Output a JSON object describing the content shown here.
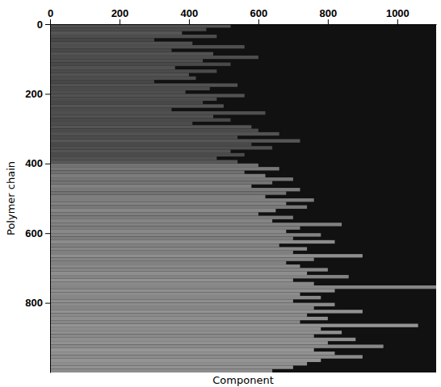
{
  "chart_data": {
    "type": "heatmap",
    "x_label": "Component",
    "y_label": "Polymer chain",
    "xlim": [
      0,
      1112
    ],
    "ylim": [
      0,
      1000
    ],
    "xticks": [
      0,
      200,
      400,
      600,
      800,
      1000
    ],
    "yticks": [
      0,
      200,
      400,
      600,
      800
    ],
    "y_bins": [
      0,
      10,
      20,
      30,
      40,
      50,
      60,
      70,
      80,
      90,
      100,
      110,
      120,
      130,
      140,
      150,
      160,
      170,
      180,
      190,
      200,
      210,
      220,
      230,
      240,
      250,
      260,
      270,
      280,
      290,
      300,
      310,
      320,
      330,
      340,
      350,
      360,
      370,
      380,
      390,
      400,
      410,
      420,
      430,
      440,
      450,
      460,
      470,
      480,
      490,
      500,
      510,
      520,
      530,
      540,
      550,
      560,
      570,
      580,
      590,
      600,
      610,
      620,
      630,
      640,
      650,
      660,
      670,
      680,
      690,
      700,
      710,
      720,
      730,
      740,
      750,
      760,
      770,
      780,
      790,
      800,
      810,
      820,
      830,
      840,
      850,
      860,
      870,
      880,
      890,
      900,
      910,
      920,
      930,
      940,
      950,
      960,
      970,
      980,
      990,
      1000
    ],
    "lengths": [
      520,
      450,
      380,
      480,
      300,
      410,
      560,
      350,
      470,
      600,
      440,
      520,
      360,
      480,
      400,
      420,
      300,
      540,
      460,
      390,
      560,
      480,
      440,
      500,
      350,
      620,
      470,
      520,
      410,
      580,
      600,
      660,
      540,
      720,
      580,
      640,
      520,
      560,
      480,
      540,
      600,
      660,
      560,
      620,
      700,
      640,
      580,
      720,
      680,
      620,
      760,
      680,
      740,
      650,
      600,
      700,
      640,
      840,
      720,
      680,
      780,
      700,
      820,
      660,
      740,
      700,
      900,
      760,
      680,
      720,
      800,
      740,
      860,
      700,
      760,
      1120,
      820,
      720,
      780,
      700,
      820,
      760,
      900,
      740,
      800,
      720,
      1060,
      780,
      840,
      760,
      880,
      800,
      960,
      760,
      820,
      900,
      780,
      740,
      700,
      640
    ],
    "intensity": [
      0.3,
      0.27,
      0.32,
      0.28,
      0.25,
      0.3,
      0.29,
      0.26,
      0.31,
      0.28,
      0.29,
      0.26,
      0.3,
      0.27,
      0.31,
      0.28,
      0.25,
      0.3,
      0.27,
      0.29,
      0.3,
      0.28,
      0.26,
      0.31,
      0.27,
      0.29,
      0.3,
      0.26,
      0.28,
      0.31,
      0.27,
      0.3,
      0.28,
      0.32,
      0.26,
      0.29,
      0.31,
      0.27,
      0.3,
      0.33,
      0.45,
      0.48,
      0.44,
      0.5,
      0.47,
      0.46,
      0.52,
      0.49,
      0.45,
      0.51,
      0.5,
      0.53,
      0.48,
      0.55,
      0.51,
      0.49,
      0.54,
      0.52,
      0.5,
      0.56,
      0.53,
      0.5,
      0.57,
      0.52,
      0.55,
      0.51,
      0.58,
      0.54,
      0.52,
      0.56,
      0.55,
      0.58,
      0.53,
      0.6,
      0.56,
      0.54,
      0.59,
      0.57,
      0.55,
      0.58,
      0.57,
      0.54,
      0.6,
      0.56,
      0.58,
      0.55,
      0.61,
      0.57,
      0.59,
      0.56,
      0.58,
      0.6,
      0.56,
      0.62,
      0.59,
      0.57,
      0.61,
      0.58,
      0.6,
      0.57
    ]
  }
}
